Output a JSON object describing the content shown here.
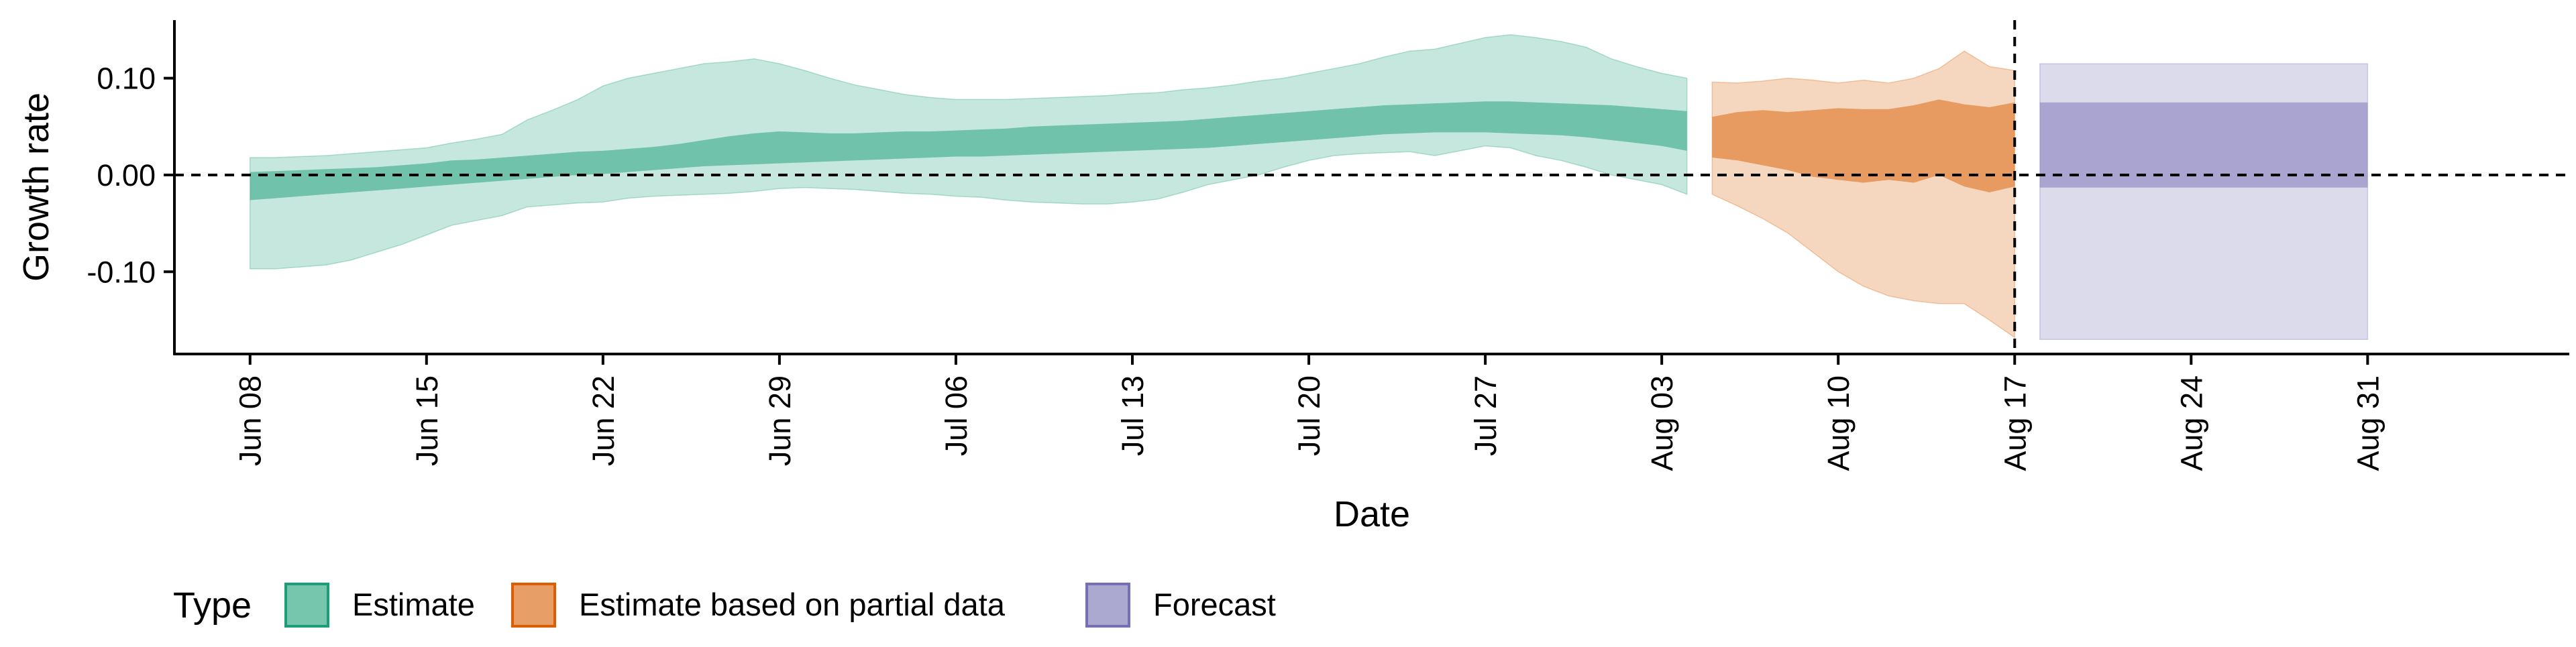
{
  "chart_data": {
    "type": "area",
    "title": "",
    "xlabel": "Date",
    "ylabel": "Growth rate",
    "ylim": [
      -0.185,
      0.16
    ],
    "yticks": [
      -0.1,
      0.0,
      0.1
    ],
    "ytick_labels": [
      "-0.10",
      "0.00",
      "0.10"
    ],
    "x_start": "2020-06-08",
    "xlim": [
      "2020-06-05",
      "2020-09-08"
    ],
    "xticks": [
      "2020-06-08",
      "2020-06-15",
      "2020-06-22",
      "2020-06-29",
      "2020-07-06",
      "2020-07-13",
      "2020-07-20",
      "2020-07-27",
      "2020-08-03",
      "2020-08-10",
      "2020-08-17",
      "2020-08-24",
      "2020-08-31"
    ],
    "xtick_labels": [
      "Jun 08",
      "Jun 15",
      "Jun 22",
      "Jun 29",
      "Jul 06",
      "Jul 13",
      "Jul 20",
      "Jul 27",
      "Aug 03",
      "Aug 10",
      "Aug 17",
      "Aug 24",
      "Aug 31"
    ],
    "reference_hline": 0.0,
    "reference_vline": "2020-08-17",
    "grid": false,
    "legend": {
      "title": "Type",
      "position": "bottom-left"
    },
    "series": [
      {
        "name": "Estimate",
        "color": "#1b9e77",
        "x": [
          "2020-06-08",
          "2020-06-09",
          "2020-06-10",
          "2020-06-11",
          "2020-06-12",
          "2020-06-13",
          "2020-06-14",
          "2020-06-15",
          "2020-06-16",
          "2020-06-17",
          "2020-06-18",
          "2020-06-19",
          "2020-06-20",
          "2020-06-21",
          "2020-06-22",
          "2020-06-23",
          "2020-06-24",
          "2020-06-25",
          "2020-06-26",
          "2020-06-27",
          "2020-06-28",
          "2020-06-29",
          "2020-06-30",
          "2020-07-01",
          "2020-07-02",
          "2020-07-03",
          "2020-07-04",
          "2020-07-05",
          "2020-07-06",
          "2020-07-07",
          "2020-07-08",
          "2020-07-09",
          "2020-07-10",
          "2020-07-11",
          "2020-07-12",
          "2020-07-13",
          "2020-07-14",
          "2020-07-15",
          "2020-07-16",
          "2020-07-17",
          "2020-07-18",
          "2020-07-19",
          "2020-07-20",
          "2020-07-21",
          "2020-07-22",
          "2020-07-23",
          "2020-07-24",
          "2020-07-25",
          "2020-07-26",
          "2020-07-27",
          "2020-07-28",
          "2020-07-29",
          "2020-07-30",
          "2020-07-31",
          "2020-08-01",
          "2020-08-02",
          "2020-08-03",
          "2020-08-04"
        ],
        "outer_upper": [
          0.018,
          0.018,
          0.019,
          0.02,
          0.022,
          0.024,
          0.026,
          0.028,
          0.033,
          0.037,
          0.042,
          0.057,
          0.067,
          0.078,
          0.092,
          0.1,
          0.105,
          0.11,
          0.115,
          0.117,
          0.12,
          0.115,
          0.108,
          0.1,
          0.093,
          0.088,
          0.083,
          0.08,
          0.078,
          0.078,
          0.078,
          0.079,
          0.08,
          0.081,
          0.082,
          0.084,
          0.085,
          0.088,
          0.09,
          0.093,
          0.097,
          0.1,
          0.105,
          0.11,
          0.115,
          0.122,
          0.128,
          0.13,
          0.136,
          0.142,
          0.145,
          0.142,
          0.138,
          0.132,
          0.12,
          0.112,
          0.105,
          0.1
        ],
        "outer_lower": [
          -0.097,
          -0.097,
          -0.095,
          -0.093,
          -0.088,
          -0.08,
          -0.072,
          -0.062,
          -0.052,
          -0.047,
          -0.042,
          -0.033,
          -0.031,
          -0.029,
          -0.028,
          -0.024,
          -0.022,
          -0.021,
          -0.02,
          -0.019,
          -0.017,
          -0.014,
          -0.013,
          -0.014,
          -0.015,
          -0.017,
          -0.019,
          -0.02,
          -0.022,
          -0.023,
          -0.026,
          -0.028,
          -0.029,
          -0.03,
          -0.03,
          -0.028,
          -0.025,
          -0.018,
          -0.01,
          -0.005,
          0.0,
          0.008,
          0.015,
          0.02,
          0.022,
          0.023,
          0.024,
          0.02,
          0.025,
          0.03,
          0.028,
          0.02,
          0.015,
          0.008,
          0.0,
          -0.005,
          -0.01,
          -0.02
        ],
        "inner_upper": [
          0.003,
          0.004,
          0.005,
          0.006,
          0.007,
          0.008,
          0.01,
          0.012,
          0.015,
          0.016,
          0.018,
          0.02,
          0.022,
          0.024,
          0.025,
          0.027,
          0.029,
          0.032,
          0.036,
          0.04,
          0.043,
          0.045,
          0.044,
          0.043,
          0.043,
          0.044,
          0.045,
          0.045,
          0.046,
          0.047,
          0.048,
          0.05,
          0.051,
          0.052,
          0.053,
          0.054,
          0.055,
          0.056,
          0.058,
          0.06,
          0.062,
          0.064,
          0.066,
          0.068,
          0.07,
          0.072,
          0.073,
          0.074,
          0.075,
          0.076,
          0.076,
          0.075,
          0.074,
          0.073,
          0.072,
          0.07,
          0.068,
          0.066
        ],
        "inner_lower": [
          -0.026,
          -0.024,
          -0.022,
          -0.02,
          -0.018,
          -0.016,
          -0.014,
          -0.012,
          -0.01,
          -0.008,
          -0.006,
          -0.004,
          -0.002,
          0.0,
          0.001,
          0.003,
          0.005,
          0.007,
          0.009,
          0.01,
          0.011,
          0.012,
          0.013,
          0.014,
          0.015,
          0.016,
          0.017,
          0.018,
          0.019,
          0.019,
          0.02,
          0.021,
          0.022,
          0.023,
          0.024,
          0.025,
          0.026,
          0.027,
          0.028,
          0.03,
          0.032,
          0.034,
          0.036,
          0.038,
          0.04,
          0.042,
          0.043,
          0.044,
          0.044,
          0.044,
          0.043,
          0.042,
          0.041,
          0.039,
          0.036,
          0.033,
          0.03,
          0.025
        ]
      },
      {
        "name": "Estimate based on partial data",
        "color": "#d95f02",
        "x": [
          "2020-08-05",
          "2020-08-06",
          "2020-08-07",
          "2020-08-08",
          "2020-08-09",
          "2020-08-10",
          "2020-08-11",
          "2020-08-12",
          "2020-08-13",
          "2020-08-14",
          "2020-08-15",
          "2020-08-16",
          "2020-08-17"
        ],
        "outer_upper": [
          0.096,
          0.095,
          0.097,
          0.1,
          0.098,
          0.095,
          0.098,
          0.095,
          0.1,
          0.11,
          0.128,
          0.112,
          0.108
        ],
        "outer_lower": [
          -0.02,
          -0.032,
          -0.045,
          -0.06,
          -0.08,
          -0.1,
          -0.115,
          -0.125,
          -0.13,
          -0.133,
          -0.133,
          -0.15,
          -0.168
        ],
        "inner_upper": [
          0.06,
          0.065,
          0.067,
          0.065,
          0.067,
          0.069,
          0.068,
          0.068,
          0.072,
          0.078,
          0.073,
          0.07,
          0.075
        ],
        "inner_lower": [
          0.018,
          0.015,
          0.01,
          0.005,
          -0.002,
          -0.005,
          -0.008,
          -0.005,
          -0.008,
          0.0,
          -0.012,
          -0.018,
          -0.012
        ]
      },
      {
        "name": "Forecast",
        "color": "#7570b3",
        "x": [
          "2020-08-18",
          "2020-08-31"
        ],
        "outer_upper": [
          0.115,
          0.115
        ],
        "outer_lower": [
          -0.17,
          -0.17
        ],
        "inner_upper": [
          0.075,
          0.075
        ],
        "inner_lower": [
          -0.013,
          -0.013
        ]
      }
    ]
  }
}
